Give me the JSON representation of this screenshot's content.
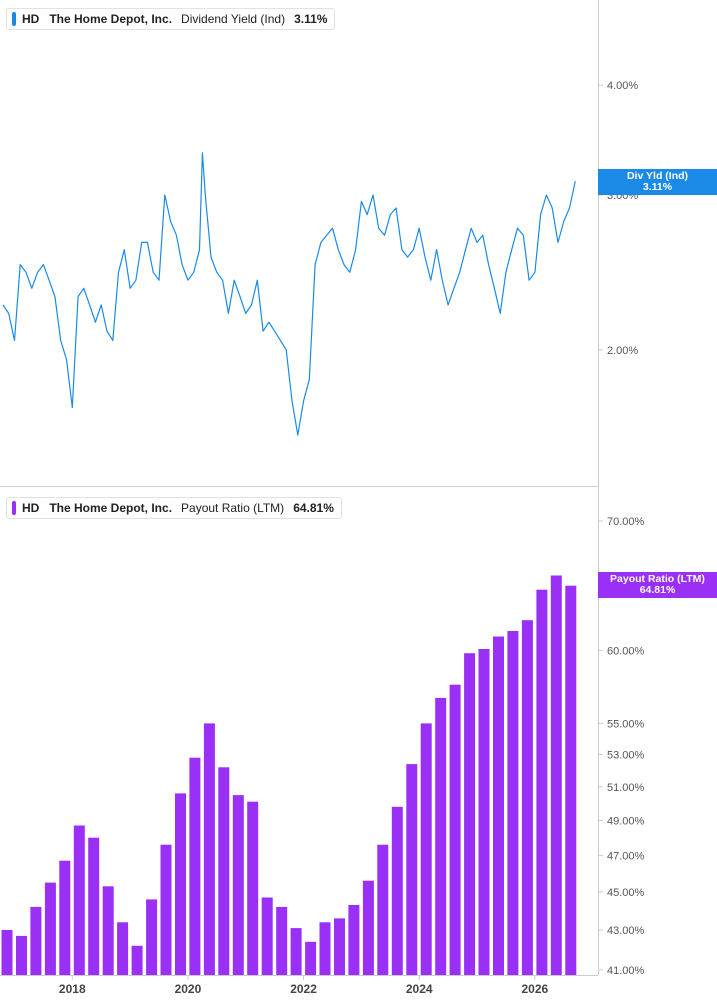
{
  "symbol": "HD",
  "company": "The Home Depot, Inc.",
  "colors": {
    "yield": "#1a8ae6",
    "payout": "#9a2ff5",
    "axis": "#cccccc",
    "text": "#555555"
  },
  "x_axis": {
    "ticks": [
      "2018",
      "2020",
      "2022",
      "2024",
      "2026"
    ]
  },
  "chart_data": [
    {
      "type": "line",
      "series_label": "Dividend Yield (Ind)",
      "current_value": "3.11%",
      "flag_lines": [
        "Div Yld (Ind)",
        "3.11%"
      ],
      "y_scale": "log",
      "ylim": [
        1.4,
        5.0
      ],
      "y_ticks": [
        "4.00%",
        "3.00%",
        "2.00%"
      ],
      "x": [
        2016.8,
        2016.9,
        2017.0,
        2017.1,
        2017.2,
        2017.3,
        2017.4,
        2017.5,
        2017.6,
        2017.7,
        2017.8,
        2017.9,
        2018.0,
        2018.1,
        2018.2,
        2018.3,
        2018.4,
        2018.5,
        2018.6,
        2018.7,
        2018.8,
        2018.9,
        2019.0,
        2019.1,
        2019.2,
        2019.3,
        2019.4,
        2019.5,
        2019.6,
        2019.7,
        2019.8,
        2019.9,
        2020.0,
        2020.1,
        2020.2,
        2020.25,
        2020.3,
        2020.4,
        2020.5,
        2020.6,
        2020.7,
        2020.8,
        2020.9,
        2021.0,
        2021.1,
        2021.2,
        2021.3,
        2021.4,
        2021.5,
        2021.6,
        2021.7,
        2021.8,
        2021.9,
        2022.0,
        2022.1,
        2022.2,
        2022.3,
        2022.4,
        2022.5,
        2022.6,
        2022.7,
        2022.8,
        2022.9,
        2023.0,
        2023.1,
        2023.2,
        2023.3,
        2023.4,
        2023.5,
        2023.6,
        2023.7,
        2023.8,
        2023.9,
        2024.0,
        2024.1,
        2024.2,
        2024.3,
        2024.4,
        2024.5,
        2024.6,
        2024.7,
        2024.8,
        2024.9,
        2025.0,
        2025.1,
        2025.2,
        2025.3,
        2025.4,
        2025.5,
        2025.6,
        2025.7,
        2025.8,
        2025.9,
        2026.0,
        2026.1,
        2026.2,
        2026.3,
        2026.4,
        2026.5,
        2026.6,
        2026.7
      ],
      "values": [
        2.25,
        2.2,
        2.05,
        2.5,
        2.45,
        2.35,
        2.45,
        2.5,
        2.4,
        2.3,
        2.05,
        1.95,
        1.72,
        2.3,
        2.35,
        2.25,
        2.15,
        2.25,
        2.1,
        2.05,
        2.45,
        2.6,
        2.35,
        2.4,
        2.65,
        2.65,
        2.45,
        2.4,
        3.0,
        2.8,
        2.7,
        2.5,
        2.4,
        2.45,
        2.6,
        3.35,
        3.0,
        2.55,
        2.45,
        2.4,
        2.2,
        2.4,
        2.3,
        2.2,
        2.25,
        2.4,
        2.1,
        2.15,
        2.1,
        2.05,
        2.0,
        1.75,
        1.6,
        1.75,
        1.85,
        2.5,
        2.65,
        2.7,
        2.75,
        2.6,
        2.5,
        2.45,
        2.6,
        2.95,
        2.85,
        3.0,
        2.75,
        2.7,
        2.85,
        2.9,
        2.6,
        2.55,
        2.6,
        2.75,
        2.55,
        2.4,
        2.6,
        2.4,
        2.25,
        2.35,
        2.45,
        2.6,
        2.75,
        2.65,
        2.7,
        2.5,
        2.35,
        2.2,
        2.45,
        2.6,
        2.75,
        2.7,
        2.4,
        2.45,
        2.85,
        3.0,
        2.9,
        2.65,
        2.8,
        2.9,
        3.11
      ]
    },
    {
      "type": "bar",
      "series_label": "Payout Ratio (LTM)",
      "current_value": "64.81%",
      "flag_lines": [
        "Payout Ratio (LTM)",
        "64.81%"
      ],
      "y_scale": "log",
      "ylim": [
        41,
        70
      ],
      "y_ticks": [
        "70.00%",
        "60.00%",
        "55.00%",
        "53.00%",
        "51.00%",
        "49.00%",
        "47.00%",
        "45.00%",
        "43.00%",
        "41.00%"
      ],
      "x": [
        2016.75,
        2017.0,
        2017.25,
        2017.5,
        2017.75,
        2018.0,
        2018.25,
        2018.5,
        2018.75,
        2019.0,
        2019.25,
        2019.5,
        2019.75,
        2020.0,
        2020.25,
        2020.5,
        2020.75,
        2021.0,
        2021.25,
        2021.5,
        2021.75,
        2022.0,
        2022.25,
        2022.5,
        2022.75,
        2023.0,
        2023.25,
        2023.5,
        2023.75,
        2024.0,
        2024.25,
        2024.5,
        2024.75,
        2025.0,
        2025.25,
        2025.5,
        2025.75,
        2026.0,
        2026.25,
        2026.5
      ],
      "values": [
        43.0,
        42.7,
        44.2,
        45.5,
        46.7,
        48.7,
        48.0,
        45.3,
        43.4,
        42.2,
        44.6,
        47.6,
        50.6,
        52.8,
        55.0,
        52.2,
        50.5,
        50.1,
        44.7,
        44.2,
        43.1,
        42.4,
        43.4,
        43.6,
        44.3,
        45.6,
        47.6,
        49.8,
        52.4,
        55.0,
        56.7,
        57.6,
        59.8,
        60.1,
        61.0,
        61.4,
        62.2,
        64.5,
        65.6,
        64.81
      ]
    }
  ]
}
